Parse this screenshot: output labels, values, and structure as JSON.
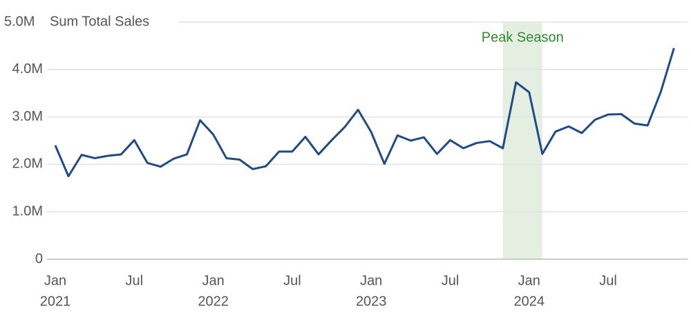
{
  "chart_data": {
    "type": "line",
    "y_title": "Sum Total Sales",
    "x": [
      "2021-01",
      "2021-02",
      "2021-03",
      "2021-04",
      "2021-05",
      "2021-06",
      "2021-07",
      "2021-08",
      "2021-09",
      "2021-10",
      "2021-11",
      "2021-12",
      "2022-01",
      "2022-02",
      "2022-03",
      "2022-04",
      "2022-05",
      "2022-06",
      "2022-07",
      "2022-08",
      "2022-09",
      "2022-10",
      "2022-11",
      "2022-12",
      "2023-01",
      "2023-02",
      "2023-03",
      "2023-04",
      "2023-05",
      "2023-06",
      "2023-07",
      "2023-08",
      "2023-09",
      "2023-10",
      "2023-11",
      "2023-12",
      "2024-01",
      "2024-02",
      "2024-03",
      "2024-04",
      "2024-05",
      "2024-06",
      "2024-07",
      "2024-08",
      "2024-09",
      "2024-10",
      "2024-11",
      "2024-12"
    ],
    "series": [
      {
        "name": "Sum Total Sales",
        "color": "#1f4a85",
        "values": [
          2400000,
          1750000,
          2200000,
          2130000,
          2180000,
          2210000,
          2510000,
          2030000,
          1950000,
          2120000,
          2210000,
          2930000,
          2630000,
          2130000,
          2100000,
          1900000,
          1960000,
          2270000,
          2270000,
          2580000,
          2210000,
          2510000,
          2790000,
          3150000,
          2680000,
          2010000,
          2610000,
          2500000,
          2570000,
          2220000,
          2510000,
          2340000,
          2450000,
          2490000,
          2340000,
          3730000,
          3520000,
          2220000,
          2690000,
          2800000,
          2660000,
          2940000,
          3050000,
          3060000,
          2860000,
          2820000,
          3530000,
          4450000
        ]
      }
    ],
    "ylim": [
      0,
      5000000
    ],
    "yticks": [
      0,
      {
        "value": 1000000,
        "label": "1.0M"
      },
      {
        "value": 2000000,
        "label": "2.0M"
      },
      {
        "value": 3000000,
        "label": "3.0M"
      },
      {
        "value": 4000000,
        "label": "4.0M"
      },
      {
        "value": 5000000,
        "label": "5.0M"
      }
    ],
    "xticks": [
      {
        "value": "2021-01",
        "label": "Jan",
        "year": "2021"
      },
      {
        "value": "2021-07",
        "label": "Jul"
      },
      {
        "value": "2022-01",
        "label": "Jan",
        "year": "2022"
      },
      {
        "value": "2022-07",
        "label": "Jul"
      },
      {
        "value": "2023-01",
        "label": "Jan",
        "year": "2023"
      },
      {
        "value": "2023-07",
        "label": "Jul"
      },
      {
        "value": "2024-01",
        "label": "Jan",
        "year": "2024"
      },
      {
        "value": "2024-07",
        "label": "Jul"
      }
    ],
    "grid": true,
    "band": {
      "label": "Peak Season",
      "start": "2023-11",
      "end": "2024-02",
      "color": "#e4efe2",
      "label_color": "#2e8b2e"
    }
  }
}
